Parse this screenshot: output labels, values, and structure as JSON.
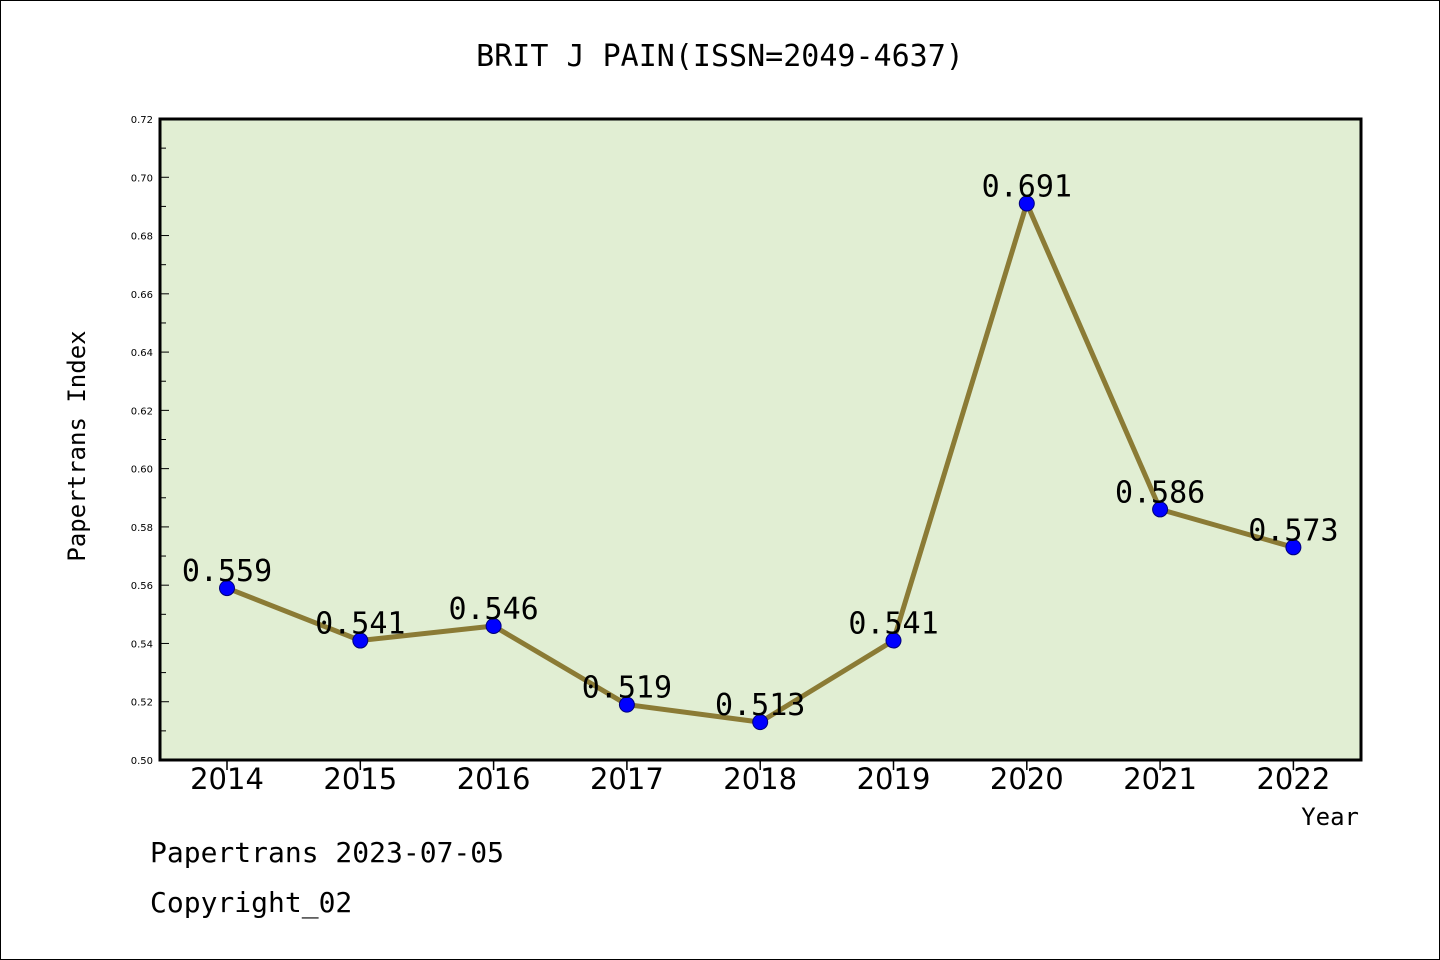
{
  "colors": {
    "background": "#ffffff",
    "plot_background": "#e1eed3",
    "line": "#8b7b35",
    "marker": "#0000ff",
    "axis": "#000000"
  },
  "footer": {
    "line1": "Papertrans 2023-07-05",
    "line2": "Copyright_02"
  },
  "chart_data": {
    "type": "line",
    "title": "BRIT J PAIN(ISSN=2049-4637)",
    "xlabel": "Year",
    "ylabel": "Papertrans Index",
    "categories": [
      "2014",
      "2015",
      "2016",
      "2017",
      "2018",
      "2019",
      "2020",
      "2021",
      "2022"
    ],
    "values": [
      0.559,
      0.541,
      0.546,
      0.519,
      0.513,
      0.541,
      0.691,
      0.586,
      0.573
    ],
    "data_labels": [
      "0.559",
      "0.541",
      "0.546",
      "0.519",
      "0.513",
      "0.541",
      "0.691",
      "0.586",
      "0.573"
    ],
    "ylim": [
      0.5,
      0.72
    ],
    "yticks": [
      "0.50",
      "0.52",
      "0.54",
      "0.56",
      "0.58",
      "0.60",
      "0.62",
      "0.64",
      "0.66",
      "0.68",
      "0.70",
      "0.72"
    ],
    "grid": false,
    "legend": "none"
  }
}
